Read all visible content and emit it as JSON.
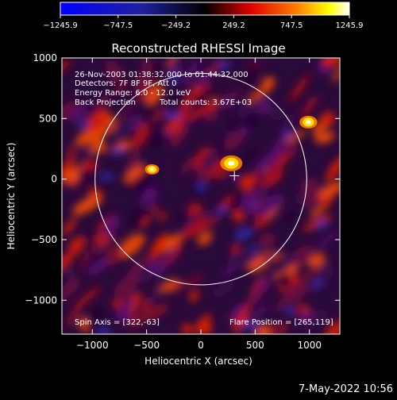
{
  "chart_data": {
    "type": "heatmap",
    "title": "Reconstructed RHESSI Image",
    "xlabel": "Heliocentric X (arcsec)",
    "ylabel": "Heliocentric Y (arcsec)",
    "xlim": [
      -1280,
      1280
    ],
    "ylim": [
      -1280,
      1000
    ],
    "x_ticks": [
      -1000,
      -500,
      0,
      500,
      1000
    ],
    "y_ticks": [
      -1000,
      -500,
      0,
      500,
      1000
    ],
    "x_tick_labels": [
      "−1000",
      "−500",
      "0",
      "500",
      "1000"
    ],
    "y_tick_labels": [
      "−1000",
      "−500",
      "0",
      "500",
      "1000"
    ],
    "colorbar": {
      "min": -1245.9,
      "max": 1245.9,
      "tick_labels": [
        "−1245.9",
        "−747.5",
        "−249.2",
        "249.2",
        "747.5",
        "1245.9"
      ],
      "colors": [
        "#0000ff",
        "#000000",
        "#ff0000",
        "#ffff00",
        "#ffffff"
      ]
    },
    "annotations": {
      "time_range": "26-Nov-2003 01:38:32.000 to 01:44:32.000",
      "detectors": "Detectors: 7F 8F 9F, Att 0",
      "energy_range": "Energy Range: 6.0 - 12.0 keV",
      "method": "Back Projection",
      "total_counts": "Total counts: 3.67E+03",
      "spin_axis": "Spin Axis = [322,-63]",
      "flare_position": "Flare Position = [265,119]"
    },
    "flare_position": [
      265,
      119
    ],
    "solar_disk_radius": 975,
    "bright_sources": [
      {
        "x": 280,
        "y": 130,
        "value": 1245.9
      },
      {
        "x": 990,
        "y": 470,
        "value": 1000
      },
      {
        "x": -450,
        "y": 80,
        "value": 800
      }
    ]
  },
  "footer": {
    "date": "7-May-2022 10:56"
  }
}
